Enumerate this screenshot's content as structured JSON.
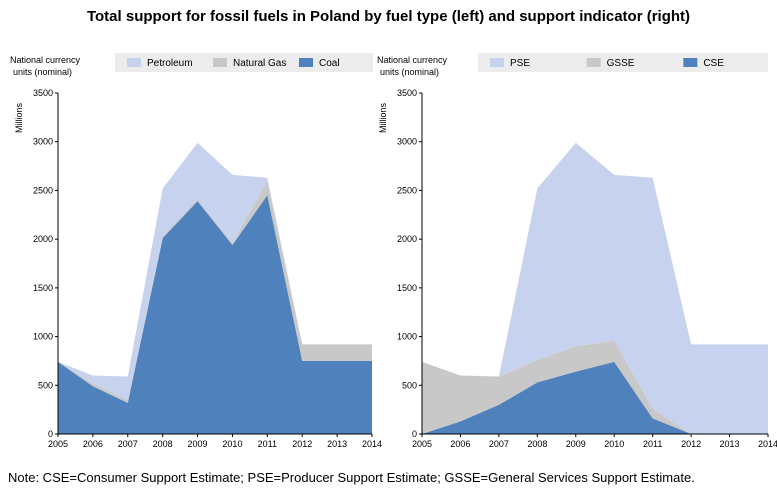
{
  "title": "Total support for fossil fuels in Poland by fuel type (left) and support indicator (right)",
  "note": "Note: CSE=Consumer Support Estimate; PSE=Producer Support Estimate; GSSE=General Services Support Estimate.",
  "colors": {
    "light_blue": "#c7d3ee",
    "gray": "#c8c8c8",
    "blue": "#4f81bd"
  },
  "chart_data": [
    {
      "type": "area",
      "stacked": true,
      "unit_label_line1": "National currency",
      "unit_label_line2": "units (nominal)",
      "ylabel": "Millions",
      "x": [
        "2005",
        "2006",
        "2007",
        "2008",
        "2009",
        "2010",
        "2011",
        "2012",
        "2013",
        "2014"
      ],
      "ylim": [
        0,
        3500
      ],
      "yticks": [
        0,
        500,
        1000,
        1500,
        2000,
        2500,
        3000,
        3500
      ],
      "legend_position": "top",
      "series": [
        {
          "name": "Coal",
          "color": "#4f81bd",
          "values": [
            740,
            490,
            320,
            2010,
            2390,
            1940,
            2450,
            750,
            750,
            750
          ]
        },
        {
          "name": "Natural Gas",
          "color": "#c8c8c8",
          "values": [
            0,
            30,
            30,
            20,
            20,
            20,
            150,
            170,
            170,
            170
          ]
        },
        {
          "name": "Petroleum",
          "color": "#c7d3ee",
          "values": [
            0,
            80,
            240,
            490,
            580,
            700,
            30,
            0,
            0,
            0
          ]
        }
      ],
      "legend_order": [
        "Petroleum",
        "Natural Gas",
        "Coal"
      ]
    },
    {
      "type": "area",
      "stacked": true,
      "unit_label_line1": "National currency",
      "unit_label_line2": "units (nominal)",
      "ylabel": "Millions",
      "x": [
        "2005",
        "2006",
        "2007",
        "2008",
        "2009",
        "2010",
        "2011",
        "2012",
        "2013",
        "2014"
      ],
      "ylim": [
        0,
        3500
      ],
      "yticks": [
        0,
        500,
        1000,
        1500,
        2000,
        2500,
        3000,
        3500
      ],
      "legend_position": "top",
      "series": [
        {
          "name": "CSE",
          "color": "#4f81bd",
          "values": [
            0,
            130,
            300,
            530,
            640,
            740,
            160,
            0,
            0,
            0
          ]
        },
        {
          "name": "GSSE",
          "color": "#c8c8c8",
          "values": [
            740,
            470,
            290,
            230,
            260,
            220,
            100,
            0,
            0,
            0
          ]
        },
        {
          "name": "PSE",
          "color": "#c7d3ee",
          "values": [
            0,
            0,
            0,
            1760,
            2090,
            1700,
            2370,
            920,
            920,
            920
          ]
        }
      ],
      "legend_order": [
        "PSE",
        "GSSE",
        "CSE"
      ]
    }
  ]
}
